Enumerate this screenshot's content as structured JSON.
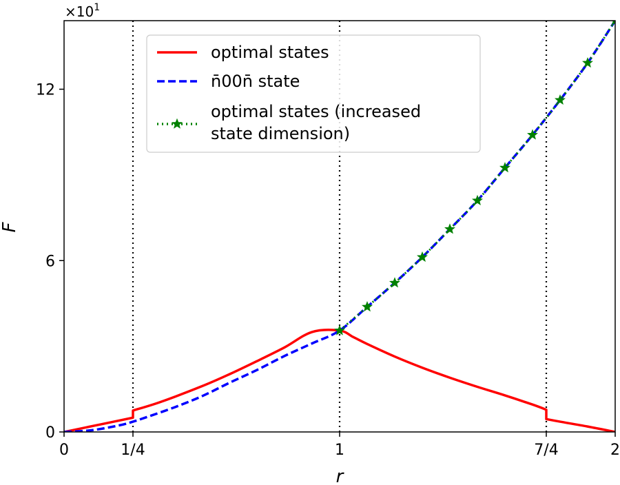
{
  "chart_data": {
    "type": "line",
    "xlabel": "r",
    "ylabel": "F",
    "xlim": [
      0,
      2
    ],
    "ylim": [
      0,
      14.4
    ],
    "y_scale_label": "×10",
    "y_scale_exponent": "1",
    "x_ticks": [
      {
        "value": 0,
        "label": "0"
      },
      {
        "value": 0.25,
        "label": "1/4"
      },
      {
        "value": 1,
        "label": "1"
      },
      {
        "value": 1.75,
        "label": "7/4"
      },
      {
        "value": 2,
        "label": "2"
      }
    ],
    "y_ticks": [
      {
        "value": 0,
        "label": "0"
      },
      {
        "value": 6,
        "label": "6"
      },
      {
        "value": 12,
        "label": "12"
      }
    ],
    "vertical_lines": [
      0.25,
      1,
      1.75
    ],
    "legend_position": "upper-center",
    "series": [
      {
        "name": "optimal states",
        "color": "#ff0000",
        "style": "solid",
        "x": [
          0,
          0.1,
          0.2,
          0.25,
          0.25,
          0.35,
          0.5,
          0.6,
          0.7,
          0.8,
          0.9,
          1.0,
          1.05,
          1.1,
          1.2,
          1.3,
          1.4,
          1.5,
          1.6,
          1.7,
          1.75,
          1.75,
          1.8,
          1.9,
          2.0
        ],
        "y": [
          0,
          0.2,
          0.4,
          0.5,
          0.75,
          1.05,
          1.6,
          2.02,
          2.48,
          2.96,
          3.5,
          3.55,
          3.32,
          3.08,
          2.64,
          2.25,
          1.9,
          1.58,
          1.28,
          0.96,
          0.78,
          0.45,
          0.36,
          0.19,
          0
        ]
      },
      {
        "name": "n̄00n̄ state",
        "color": "#0000ff",
        "style": "dashed",
        "x": [
          0,
          0.1,
          0.2,
          0.25,
          0.3,
          0.4,
          0.5,
          0.6,
          0.7,
          0.8,
          0.9,
          1.0,
          1.1,
          1.2,
          1.3,
          1.4,
          1.5,
          1.6,
          1.7,
          1.8,
          1.9,
          2.0
        ],
        "y": [
          0,
          0.06,
          0.23,
          0.36,
          0.52,
          0.86,
          1.25,
          1.72,
          2.17,
          2.66,
          3.1,
          3.55,
          4.38,
          5.22,
          6.12,
          7.1,
          8.1,
          9.25,
          10.4,
          11.62,
          12.92,
          14.4
        ]
      },
      {
        "name": "optimal states (increased state dimension)",
        "color": "#008000",
        "style": "dotted-star",
        "x": [
          1.0,
          1.1,
          1.2,
          1.3,
          1.4,
          1.5,
          1.6,
          1.7,
          1.8,
          1.9,
          2.0
        ],
        "y": [
          3.55,
          4.38,
          5.22,
          6.12,
          7.1,
          8.1,
          9.25,
          10.4,
          11.62,
          12.92,
          14.4
        ]
      }
    ]
  }
}
